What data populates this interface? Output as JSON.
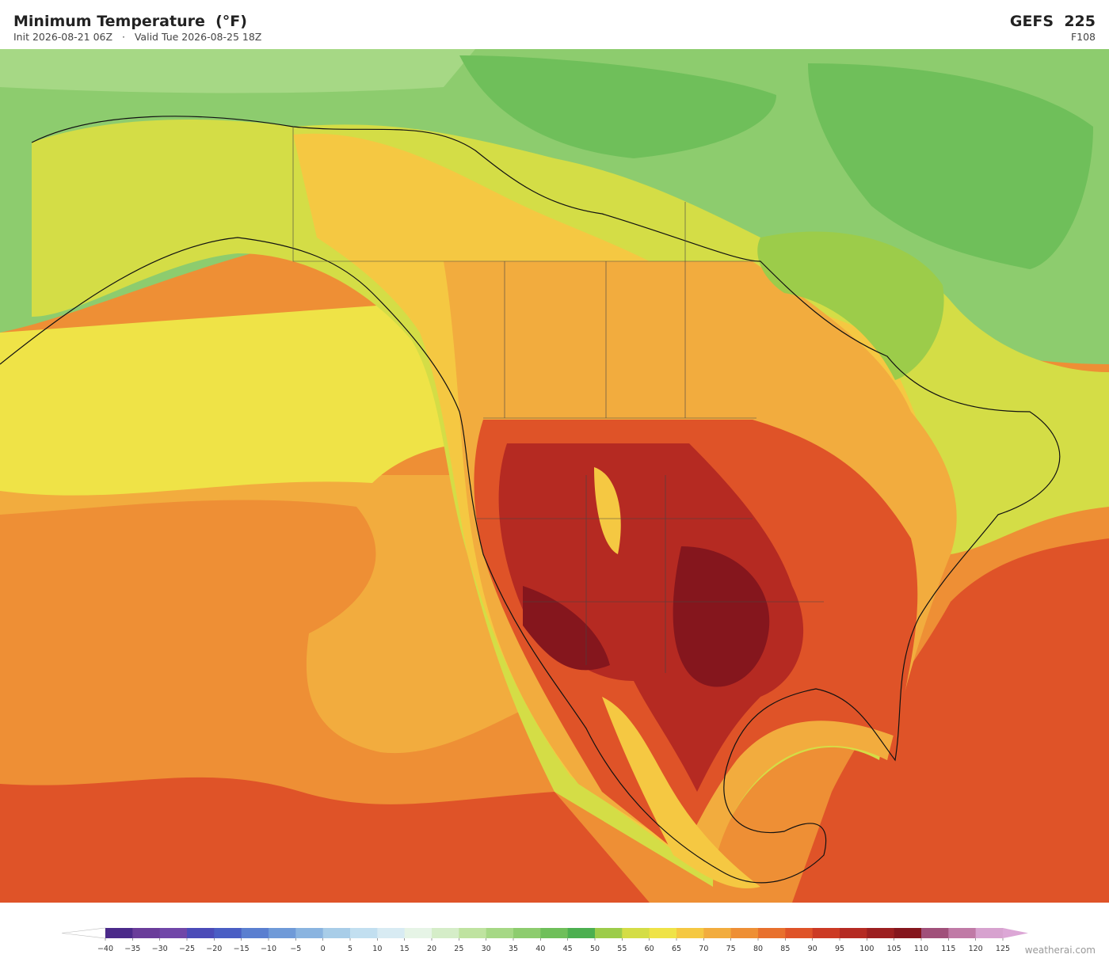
{
  "header": {
    "title": "Minimum Temperature  (°F)",
    "subtitle": "Init 2026-08-21 06Z   ·   Valid Tue 2026-08-25 18Z",
    "model": "GEFS  225",
    "forecast_hour": "F108"
  },
  "colorbar": {
    "ticks": [
      {
        "value": -40,
        "label": "−40"
      },
      {
        "value": -35,
        "label": "−35"
      },
      {
        "value": -30,
        "label": "−30"
      },
      {
        "value": -25,
        "label": "−25"
      },
      {
        "value": -20,
        "label": "−20"
      },
      {
        "value": -15,
        "label": "−15"
      },
      {
        "value": -10,
        "label": "−10"
      },
      {
        "value": -5,
        "label": "−5"
      },
      0,
      5,
      10,
      15,
      20,
      25,
      30,
      35,
      40,
      45,
      50,
      55,
      60,
      65,
      70,
      75,
      80,
      85,
      90,
      95,
      100,
      105,
      110,
      115,
      120,
      125
    ],
    "colors": [
      "#4b2a8a",
      "#6a3d9a",
      "#7046a8",
      "#4b4bb8",
      "#4a5ec4",
      "#5a7fd0",
      "#6f9ad8",
      "#8ab4e0",
      "#a8cde8",
      "#c2dff0",
      "#d8ebf3",
      "#e6f4e6",
      "#d5edc8",
      "#bfe3a0",
      "#a6d885",
      "#8dcc6e",
      "#6fbf5a",
      "#4caf50",
      "#9ccc4a",
      "#d4dd46",
      "#efe347",
      "#f5c842",
      "#f2ac3e",
      "#ee8f35",
      "#e8702d",
      "#df5328",
      "#cc3a24",
      "#b52a22",
      "#9c1f20",
      "#85161d",
      "#a0507a",
      "#c07aa6",
      "#d7a2cf"
    ],
    "under_color": "#ffffff",
    "over_color": "#dca7d6"
  },
  "watermark": "weatherai.com"
}
